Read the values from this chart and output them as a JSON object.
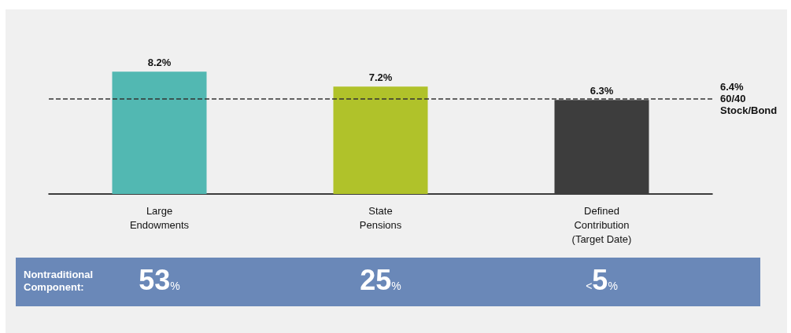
{
  "chart_data": {
    "type": "bar",
    "categories": [
      "Large\nEndowments",
      "State\nPensions",
      "Defined\nContribution\n(Target Date)"
    ],
    "values": [
      8.2,
      7.2,
      6.3
    ],
    "colors": [
      "#52b8b2",
      "#b0c22a",
      "#3d3d3d"
    ],
    "value_labels": [
      "8.2%",
      "7.2%",
      "6.3%"
    ],
    "ref_lines": [
      {
        "axis": "y",
        "value": 6.4,
        "label": "6.4%\n60/40\nStock/Bond",
        "color": "#333333",
        "line_style": "dashed"
      }
    ],
    "annotations": [
      "Nontraditional\nComponent:",
      "53%",
      "25%",
      "<5%"
    ]
  }
}
